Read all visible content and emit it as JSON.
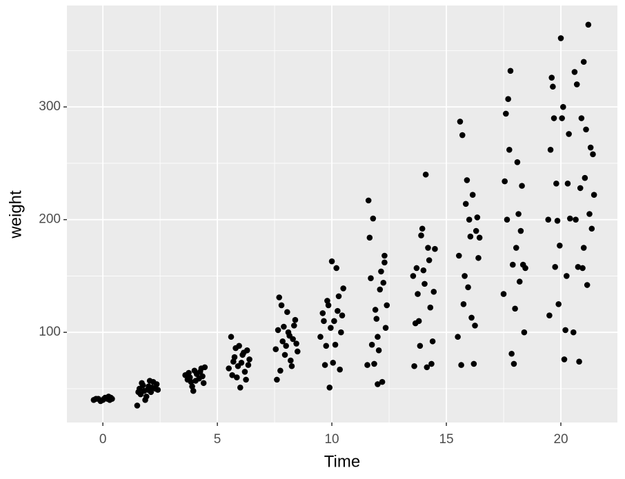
{
  "chart_data": {
    "type": "scatter",
    "x_label": "Time",
    "y_label": "weight",
    "color": "#000000",
    "grid": true,
    "panel_color": "#ebebeb",
    "xlim": [
      -1.57,
      22.47
    ],
    "ylim": [
      20,
      390
    ],
    "xticks": [
      0,
      5,
      10,
      15,
      20
    ],
    "yticks": [
      100,
      200,
      300
    ],
    "x_minor_ticks": [
      -2.5,
      2.5,
      7.5,
      12.5,
      17.5,
      22.5
    ],
    "y_minor_ticks": [
      50,
      150,
      250,
      350
    ],
    "x": [
      -0.4,
      -0.2,
      0,
      0.1,
      0.2,
      0.3,
      0.4,
      -0.1,
      0.25,
      -0.3,
      0.05,
      0.35,
      1.5,
      1.6,
      1.7,
      1.8,
      1.9,
      2.0,
      2.1,
      2.2,
      2.3,
      2.4,
      1.65,
      1.75,
      1.85,
      2.05,
      2.15,
      2.35,
      1.55,
      1.95,
      3.6,
      3.7,
      3.8,
      3.9,
      4.0,
      4.1,
      4.2,
      4.3,
      4.4,
      3.75,
      3.95,
      4.05,
      4.25,
      4.35,
      4.45,
      3.85,
      5.6,
      5.7,
      5.8,
      5.9,
      6.0,
      6.1,
      6.2,
      6.3,
      6.4,
      5.5,
      5.65,
      5.75,
      5.85,
      5.95,
      6.05,
      6.15,
      6.25,
      6.35,
      7.6,
      7.7,
      7.8,
      7.9,
      8.0,
      8.1,
      8.2,
      8.3,
      8.4,
      8.5,
      7.65,
      7.75,
      7.85,
      7.95,
      8.05,
      8.15,
      8.25,
      8.35,
      8.45,
      7.55,
      9.5,
      9.6,
      9.7,
      9.8,
      9.9,
      10.0,
      10.1,
      10.2,
      10.3,
      10.4,
      10.5,
      9.65,
      9.75,
      9.85,
      9.95,
      10.05,
      10.15,
      10.25,
      10.35,
      10.45,
      11.6,
      11.65,
      11.7,
      11.8,
      11.9,
      12.0,
      12.1,
      12.2,
      12.3,
      12.4,
      11.75,
      11.85,
      11.95,
      12.05,
      12.15,
      12.25,
      12.35,
      11.55,
      12.0,
      12.3,
      13.6,
      13.7,
      13.8,
      13.9,
      14.0,
      14.1,
      14.2,
      14.3,
      14.4,
      14.5,
      13.65,
      13.75,
      13.85,
      13.95,
      14.05,
      14.15,
      14.25,
      14.35,
      14.45,
      13.55,
      15.5,
      15.6,
      15.7,
      15.8,
      15.9,
      16.0,
      16.1,
      16.2,
      16.3,
      16.4,
      15.55,
      15.65,
      15.75,
      15.85,
      15.95,
      16.05,
      16.15,
      16.25,
      16.35,
      16.45,
      17.5,
      17.6,
      17.7,
      17.8,
      17.9,
      18.0,
      18.1,
      18.2,
      18.3,
      18.4,
      17.55,
      17.65,
      17.75,
      17.85,
      17.95,
      18.05,
      18.15,
      18.25,
      18.35,
      18.45,
      19.5,
      19.6,
      19.7,
      19.8,
      19.9,
      20.0,
      20.1,
      20.2,
      20.3,
      20.4,
      19.55,
      19.65,
      19.75,
      19.85,
      19.95,
      20.05,
      20.15,
      20.25,
      20.35,
      19.45,
      20.6,
      20.7,
      20.8,
      20.9,
      21.0,
      21.1,
      21.2,
      21.3,
      21.4,
      20.65,
      20.75,
      20.85,
      20.95,
      21.05,
      21.15,
      21.25,
      21.35,
      20.55,
      21.45,
      21.0
    ],
    "values": [
      40,
      41,
      40,
      42,
      41,
      40,
      41,
      39,
      43,
      41,
      41,
      42,
      35,
      50,
      55,
      48,
      43,
      52,
      47,
      56,
      50,
      49,
      45,
      53,
      40,
      57,
      51,
      54,
      47,
      49,
      62,
      58,
      60,
      52,
      66,
      63,
      59,
      68,
      55,
      64,
      48,
      57,
      65,
      61,
      69,
      56,
      96,
      74,
      86,
      70,
      51,
      80,
      65,
      84,
      76,
      68,
      62,
      78,
      60,
      88,
      73,
      82,
      58,
      71,
      58,
      131,
      124,
      105,
      88,
      100,
      75,
      94,
      111,
      83,
      102,
      66,
      92,
      80,
      118,
      97,
      70,
      106,
      90,
      85,
      96,
      117,
      71,
      128,
      51,
      163,
      110,
      157,
      132,
      100,
      139,
      110,
      88,
      124,
      104,
      73,
      89,
      119,
      67,
      115,
      217,
      184,
      148,
      201,
      120,
      96,
      138,
      56,
      162,
      124,
      89,
      72,
      112,
      84,
      154,
      144,
      104,
      71,
      54,
      168,
      70,
      157,
      110,
      186,
      155,
      240,
      175,
      122,
      92,
      174,
      108,
      134,
      88,
      192,
      143,
      69,
      164,
      72,
      136,
      150,
      96,
      287,
      275,
      150,
      235,
      200,
      113,
      72,
      190,
      166,
      168,
      71,
      125,
      214,
      140,
      185,
      222,
      106,
      202,
      184,
      134,
      294,
      307,
      332,
      160,
      121,
      251,
      145,
      230,
      100,
      234,
      200,
      262,
      81,
      72,
      175,
      205,
      190,
      160,
      157,
      115,
      326,
      290,
      232,
      125,
      361,
      300,
      102,
      232,
      201,
      262,
      318,
      158,
      199,
      177,
      290,
      76,
      150,
      276,
      200,
      331,
      320,
      74,
      290,
      340,
      280,
      373,
      264,
      258,
      200,
      158,
      228,
      157,
      237,
      142,
      205,
      192,
      100,
      222,
      175
    ]
  }
}
